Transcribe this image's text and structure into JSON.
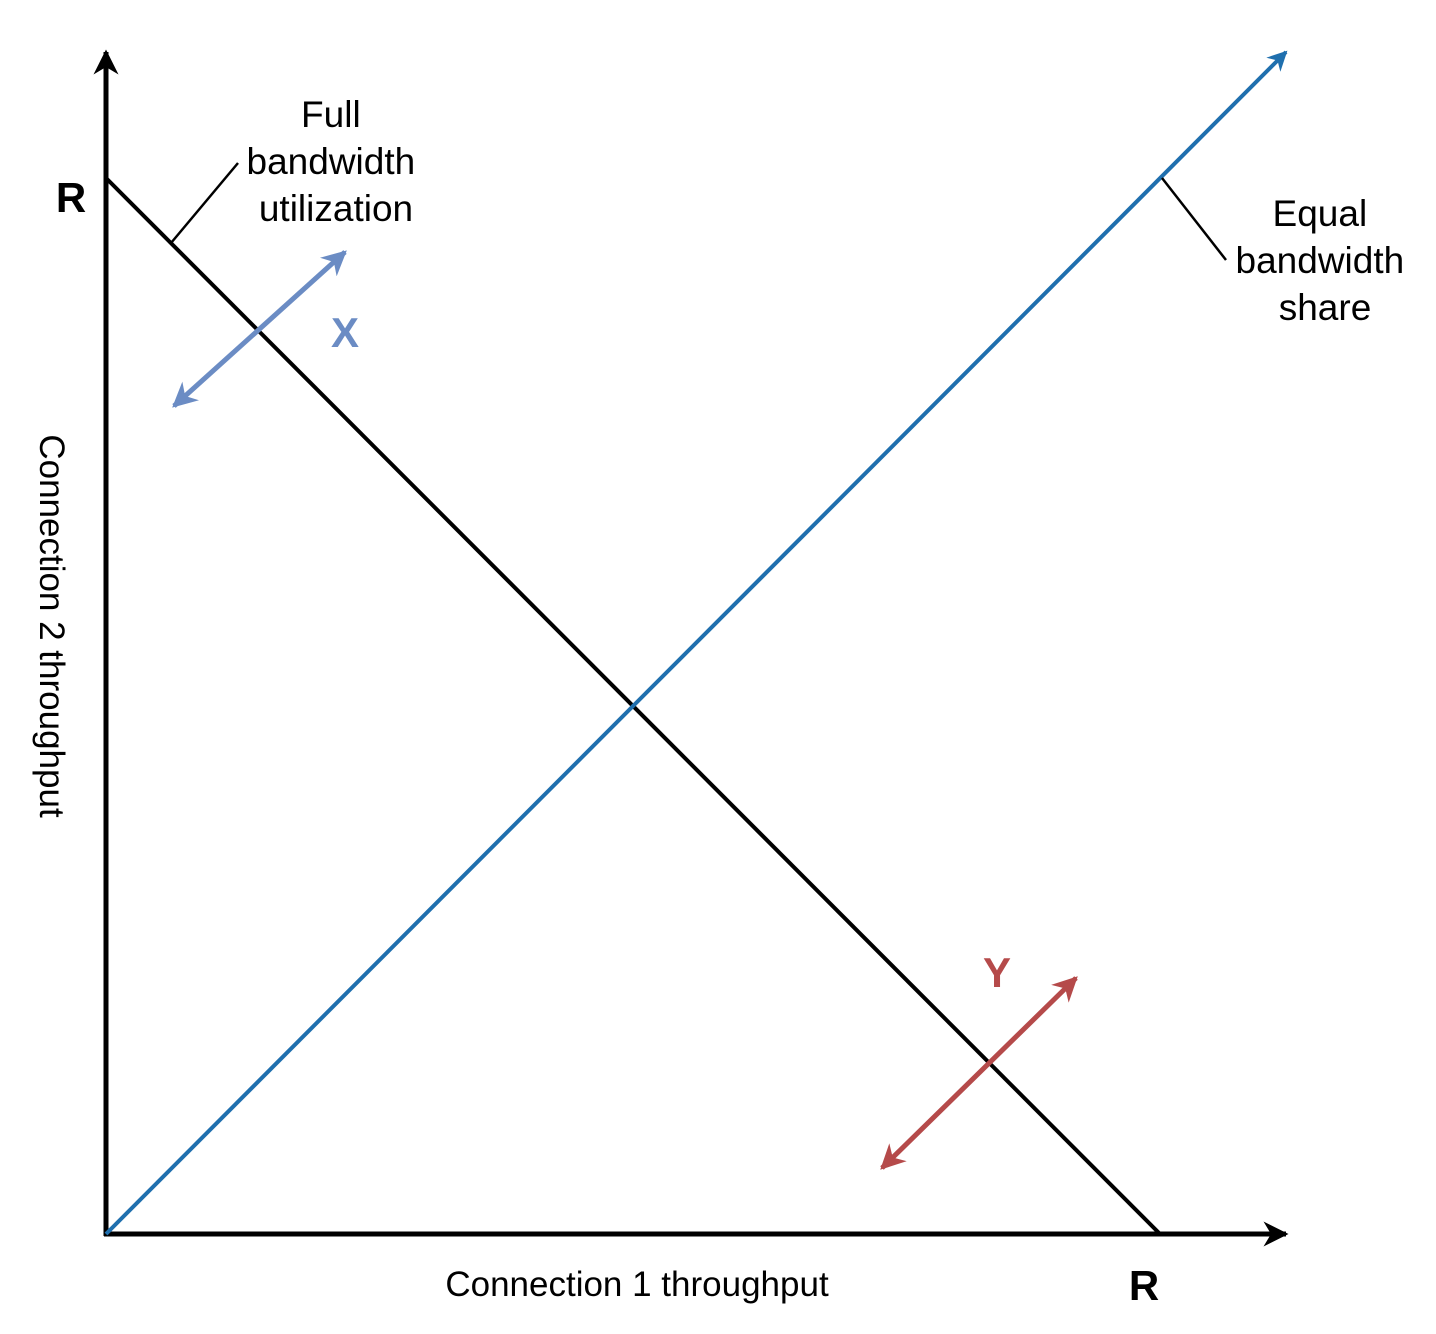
{
  "axes": {
    "x_label": "Connection 1 throughput",
    "y_label": "Connection 2 throughput",
    "x_max_label": "R",
    "y_max_label": "R"
  },
  "callouts": {
    "full_bandwidth": [
      "Full",
      "bandwidth",
      "utilization"
    ],
    "equal_share": [
      "Equal",
      "bandwidth",
      "share"
    ]
  },
  "arrows": {
    "x_label": "X",
    "y_label": "Y"
  },
  "colors": {
    "axis": "#000000",
    "full_utilization_line": "#000000",
    "equal_share_line": "#1f6fae",
    "arrow_x": "#6b8cc4",
    "arrow_y": "#b54a4a"
  }
}
